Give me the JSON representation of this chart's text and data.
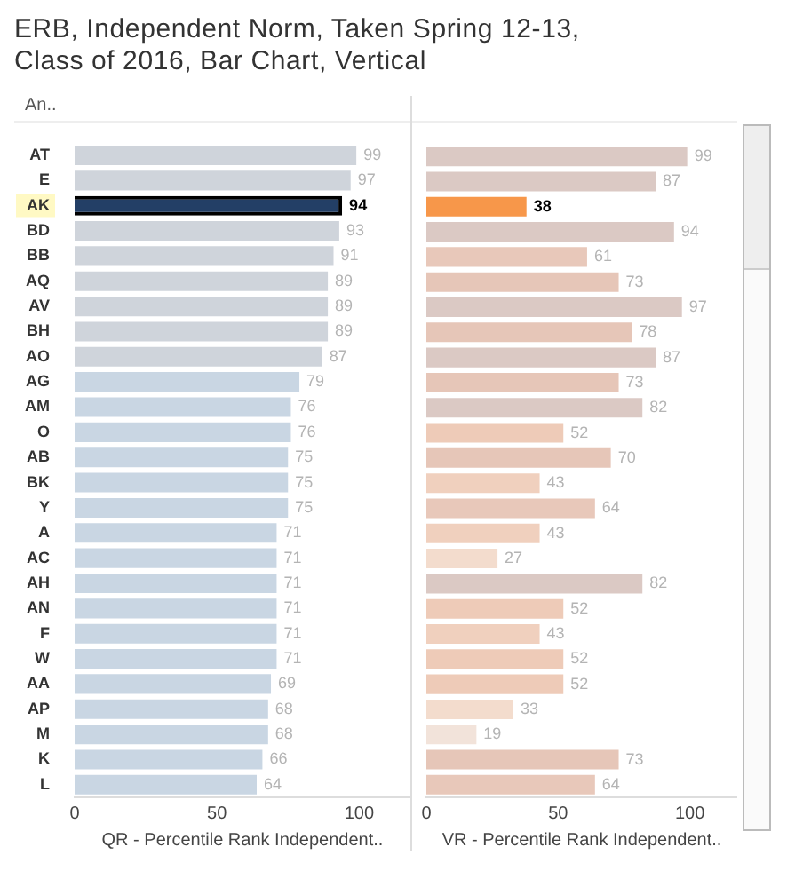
{
  "chart_data": [
    {
      "type": "bar",
      "orientation": "horizontal",
      "title": "ERB, Independent Norm, Taken Spring 12-13, Class of 2016, Bar Chart, Vertical",
      "ylabel": "An..",
      "xlabel": "QR - Percentile Rank Independent..",
      "categories": [
        "AT",
        "E",
        "AK",
        "BD",
        "BB",
        "AQ",
        "AV",
        "BH",
        "AO",
        "AG",
        "AM",
        "O",
        "AB",
        "BK",
        "Y",
        "A",
        "AC",
        "AH",
        "AN",
        "F",
        "W",
        "AA",
        "AP",
        "M",
        "K",
        "L"
      ],
      "values": [
        99,
        97,
        94,
        93,
        91,
        89,
        89,
        89,
        87,
        79,
        76,
        76,
        75,
        75,
        75,
        71,
        71,
        71,
        71,
        71,
        71,
        69,
        68,
        68,
        66,
        64
      ],
      "colors": [
        "#cfd4db",
        "#cfd4db",
        "#233f66",
        "#cfd4db",
        "#cfd4db",
        "#cfd4db",
        "#cfd4db",
        "#cfd4db",
        "#cfd4db",
        "#c9d6e3",
        "#c9d6e3",
        "#c9d6e3",
        "#c9d6e3",
        "#c9d6e3",
        "#c9d6e3",
        "#c9d6e3",
        "#c9d6e3",
        "#c9d6e3",
        "#c9d6e3",
        "#c9d6e3",
        "#c9d6e3",
        "#c9d6e3",
        "#c9d6e3",
        "#c9d6e3",
        "#c9d6e3",
        "#c9d6e3"
      ],
      "xlim": [
        0,
        118
      ],
      "xticks": [
        0,
        50,
        100
      ],
      "data_labels": true,
      "grid": false,
      "legend": false
    },
    {
      "type": "bar",
      "orientation": "horizontal",
      "xlabel": "VR - Percentile Rank Independent..",
      "values": [
        99,
        87,
        38,
        94,
        61,
        73,
        97,
        78,
        87,
        73,
        82,
        52,
        70,
        43,
        64,
        43,
        27,
        82,
        52,
        43,
        52,
        52,
        33,
        19,
        73,
        64
      ],
      "colors": [
        "#dbc9c4",
        "#dbc9c4",
        "#f7974a",
        "#dbc9c4",
        "#e8c8ba",
        "#e6c6b8",
        "#dbc9c4",
        "#e6c6b8",
        "#dbc9c4",
        "#e6c6b8",
        "#dbc9c4",
        "#eecbb8",
        "#e6c6b8",
        "#f0d0be",
        "#e8c8ba",
        "#f0d0be",
        "#f3dccd",
        "#dbc9c4",
        "#eecbb8",
        "#f0d0be",
        "#eecbb8",
        "#eecbb8",
        "#f3dccd",
        "#f2e3da",
        "#e6c6b8",
        "#e8c8ba"
      ],
      "xlim": [
        0,
        118
      ],
      "xticks": [
        0,
        50,
        100
      ],
      "data_labels": true,
      "grid": false,
      "legend": false,
      "tick_labels": "x"
    }
  ]
}
